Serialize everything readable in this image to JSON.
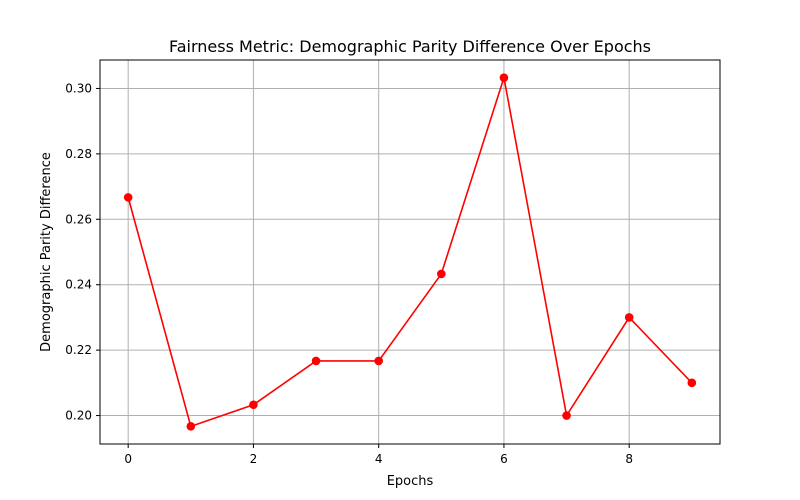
{
  "chart_data": {
    "type": "line",
    "title": "Fairness Metric: Demographic Parity Difference Over Epochs",
    "xlabel": "Epochs",
    "ylabel": "Demographic Parity Difference",
    "x": [
      0,
      1,
      2,
      3,
      4,
      5,
      6,
      7,
      8,
      9
    ],
    "series": [
      {
        "values": [
          0.2667,
          0.1967,
          0.2033,
          0.2167,
          0.2167,
          0.2433,
          0.3033,
          0.2,
          0.23,
          0.21
        ],
        "color": "#ff0000",
        "marker": "circle"
      }
    ],
    "xlim": [
      -0.45,
      9.45
    ],
    "ylim": [
      0.1913,
      0.3087
    ],
    "xticks": [
      0,
      2,
      4,
      6,
      8
    ],
    "yticks": [
      0.2,
      0.22,
      0.24,
      0.26,
      0.28,
      0.3
    ],
    "xtick_labels": [
      "0",
      "2",
      "4",
      "6",
      "8"
    ],
    "ytick_labels": [
      "0.20",
      "0.22",
      "0.24",
      "0.26",
      "0.28",
      "0.30"
    ],
    "grid": true,
    "grid_color": "#b0b0b0"
  }
}
